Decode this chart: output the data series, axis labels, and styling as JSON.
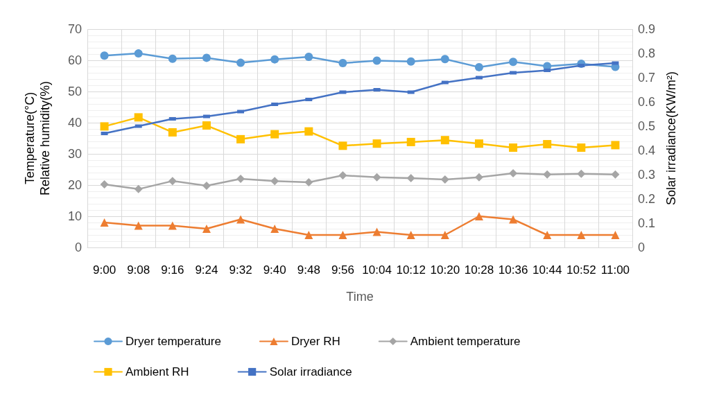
{
  "chart_data": {
    "type": "line",
    "xlabel": "Time",
    "ylabel": "Temperature(°C)\nRelative humidity(%)",
    "y2label": "Solar irradiance(KW/m²)",
    "categories": [
      "9:00",
      "9:08",
      "9:16",
      "9:24",
      "9:32",
      "9:40",
      "9:48",
      "9:56",
      "10:04",
      "10:12",
      "10:20",
      "10:28",
      "10:36",
      "10:44",
      "10:52",
      "11:00"
    ],
    "series": [
      {
        "name": "Dryer temperature",
        "color": "#5b9bd5",
        "marker": "circle",
        "values": [
          61.5,
          62.2,
          60.5,
          60.8,
          59.2,
          60.3,
          61.1,
          59.1,
          59.9,
          59.6,
          60.4,
          57.8,
          59.5,
          58.1,
          58.9,
          57.9
        ]
      },
      {
        "name": "Dryer RH",
        "color": "#ed7d31",
        "marker": "triangle",
        "values": [
          8,
          7,
          7,
          6,
          9,
          6,
          4,
          4,
          5,
          4,
          4,
          10,
          9,
          4,
          4,
          4
        ]
      },
      {
        "name": "Ambient temperature",
        "color": "#a5a5a5",
        "marker": "diamond",
        "values": [
          20.2,
          18.7,
          21.3,
          19.8,
          22,
          21.3,
          20.9,
          23.1,
          22.5,
          22.2,
          21.8,
          22.5,
          23.8,
          23.4,
          23.6,
          23.4
        ]
      },
      {
        "name": "Ambient RH",
        "color": "#ffc000",
        "marker": "square",
        "values": [
          38.8,
          41.7,
          36.9,
          39.1,
          34.7,
          36.3,
          37.2,
          32.6,
          33.3,
          33.8,
          34.4,
          33.3,
          32,
          33.1,
          32,
          32.8
        ]
      },
      {
        "name": "Solar irradiance",
        "color": "#4472c4",
        "marker": "rect",
        "axis": "y2",
        "values": [
          0.47,
          0.5,
          0.53,
          0.54,
          0.56,
          0.59,
          0.61,
          0.64,
          0.65,
          0.64,
          0.68,
          0.7,
          0.72,
          0.73,
          0.75,
          0.76
        ]
      }
    ],
    "ylim": [
      0,
      70
    ],
    "yticks": [
      0,
      10,
      20,
      30,
      40,
      50,
      60,
      70
    ],
    "y2lim": [
      0,
      0.9
    ],
    "y2ticks": [
      0,
      0.1,
      0.2,
      0.3,
      0.4,
      0.5,
      0.6,
      0.7,
      0.8,
      0.9
    ],
    "grid": true,
    "legend": "bottom",
    "line_style": "solid"
  }
}
